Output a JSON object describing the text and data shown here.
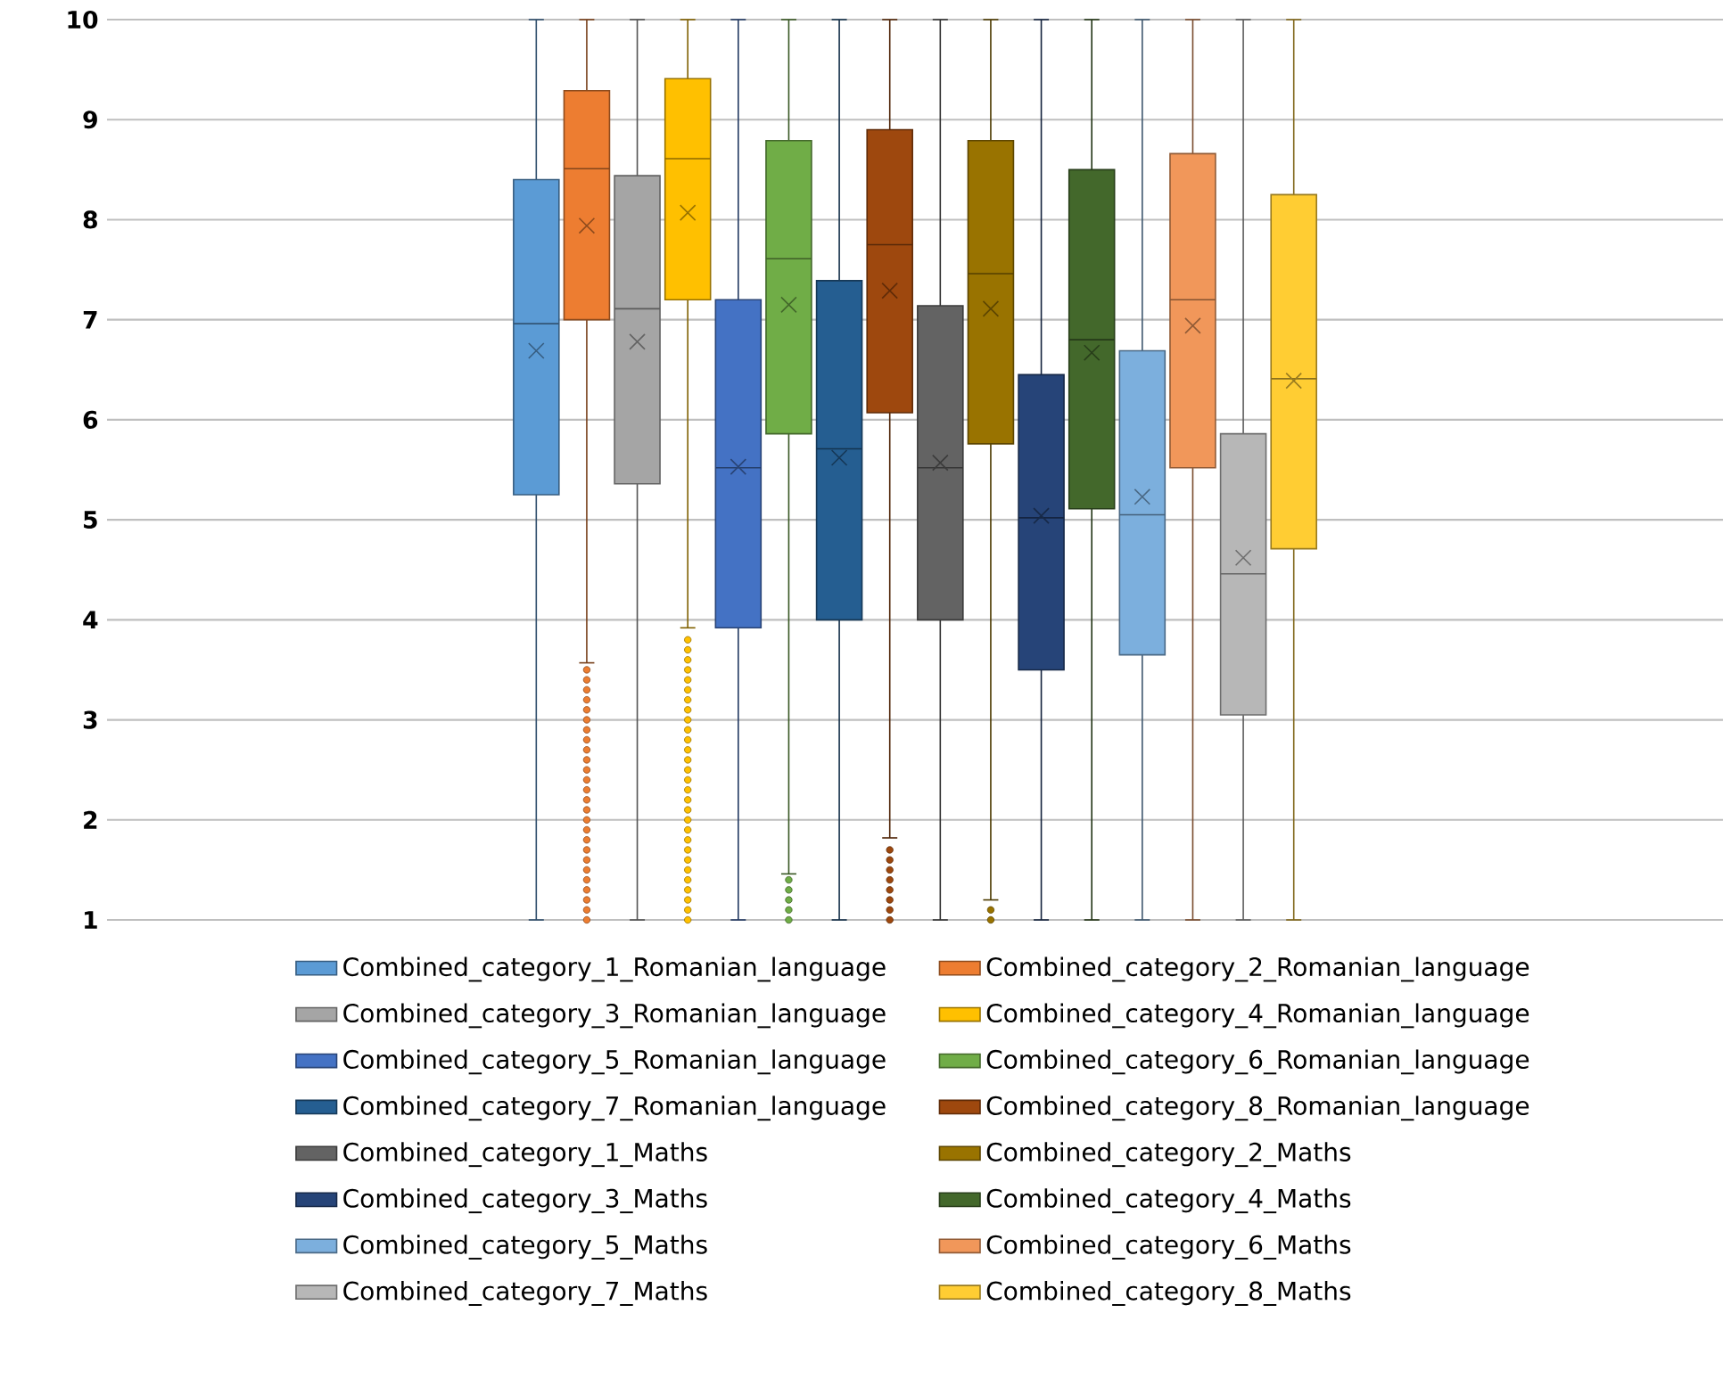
{
  "chart_data": {
    "type": "box",
    "categories": [
      null
    ],
    "ylim": [
      1,
      10
    ],
    "yticks": [
      1,
      2,
      3,
      4,
      5,
      6,
      7,
      8,
      9,
      10
    ],
    "grid": "y",
    "legend": "bottom",
    "series": [
      {
        "name": "Combined_category_1_Romanian_language",
        "color": "#5b9bd5",
        "boxes": [
          {
            "low": 1,
            "q1": 5.25,
            "median": 6.96,
            "q3": 8.4,
            "high": 10,
            "mean": 6.69
          }
        ]
      },
      {
        "name": "Combined_category_2_Romanian_language",
        "color": "#ed7d31",
        "boxes": [
          {
            "low": 3.57,
            "q1": 7.0,
            "median": 8.51,
            "q3": 9.29,
            "high": 10,
            "mean": 7.94,
            "outliers": [
              1.0,
              1.1,
              1.2,
              1.3,
              1.4,
              1.5,
              1.6,
              1.7,
              1.8,
              1.9,
              2.0,
              2.1,
              2.2,
              2.3,
              2.4,
              2.5,
              2.6,
              2.7,
              2.8,
              2.9,
              3.0,
              3.1,
              3.2,
              3.3,
              3.4,
              3.5
            ]
          }
        ]
      },
      {
        "name": "Combined_category_3_Romanian_language",
        "color": "#a5a5a5",
        "boxes": [
          {
            "low": 1,
            "q1": 5.36,
            "median": 7.11,
            "q3": 8.44,
            "high": 10,
            "mean": 6.78
          }
        ]
      },
      {
        "name": "Combined_category_4_Romanian_language",
        "color": "#ffc000",
        "boxes": [
          {
            "low": 3.92,
            "q1": 7.2,
            "median": 8.61,
            "q3": 9.41,
            "high": 10,
            "mean": 8.07,
            "outliers": [
              1.0,
              1.1,
              1.2,
              1.3,
              1.4,
              1.5,
              1.6,
              1.7,
              1.8,
              1.9,
              2.0,
              2.1,
              2.2,
              2.3,
              2.4,
              2.5,
              2.6,
              2.7,
              2.8,
              2.9,
              3.0,
              3.1,
              3.2,
              3.3,
              3.4,
              3.5,
              3.6,
              3.7,
              3.8
            ]
          }
        ]
      },
      {
        "name": "Combined_category_5_Romanian_language",
        "color": "#4472c4",
        "boxes": [
          {
            "low": 1,
            "q1": 3.92,
            "median": 5.52,
            "q3": 7.2,
            "high": 10,
            "mean": 5.53
          }
        ]
      },
      {
        "name": "Combined_category_6_Romanian_language",
        "color": "#70ad47",
        "boxes": [
          {
            "low": 1.46,
            "q1": 5.86,
            "median": 7.61,
            "q3": 8.79,
            "high": 10,
            "mean": 7.15,
            "outliers": [
              1.0,
              1.1,
              1.2,
              1.3,
              1.4
            ]
          }
        ]
      },
      {
        "name": "Combined_category_7_Romanian_language",
        "color": "#255e91",
        "boxes": [
          {
            "low": 1,
            "q1": 4.0,
            "median": 5.71,
            "q3": 7.39,
            "high": 10,
            "mean": 5.62
          }
        ]
      },
      {
        "name": "Combined_category_8_Romanian_language",
        "color": "#9e480e",
        "boxes": [
          {
            "low": 1.82,
            "q1": 6.07,
            "median": 7.75,
            "q3": 8.9,
            "high": 10,
            "mean": 7.29,
            "outliers": [
              1.0,
              1.1,
              1.2,
              1.3,
              1.4,
              1.5,
              1.6,
              1.7
            ]
          }
        ]
      },
      {
        "name": "Combined_category_1_Maths",
        "color": "#636363",
        "boxes": [
          {
            "low": 1,
            "q1": 4.0,
            "median": 5.52,
            "q3": 7.14,
            "high": 10,
            "mean": 5.57
          }
        ]
      },
      {
        "name": "Combined_category_2_Maths",
        "color": "#997300",
        "boxes": [
          {
            "low": 1.2,
            "q1": 5.76,
            "median": 7.46,
            "q3": 8.79,
            "high": 10,
            "mean": 7.11,
            "outliers": [
              1.0,
              1.1
            ]
          }
        ]
      },
      {
        "name": "Combined_category_3_Maths",
        "color": "#264478",
        "boxes": [
          {
            "low": 1,
            "q1": 3.5,
            "median": 5.02,
            "q3": 6.45,
            "high": 10,
            "mean": 5.04
          }
        ]
      },
      {
        "name": "Combined_category_4_Maths",
        "color": "#43682b",
        "boxes": [
          {
            "low": 1,
            "q1": 5.11,
            "median": 6.8,
            "q3": 8.5,
            "high": 10,
            "mean": 6.67
          }
        ]
      },
      {
        "name": "Combined_category_5_Maths",
        "color": "#7cafdd",
        "boxes": [
          {
            "low": 1,
            "q1": 3.65,
            "median": 5.05,
            "q3": 6.69,
            "high": 10,
            "mean": 5.23
          }
        ]
      },
      {
        "name": "Combined_category_6_Maths",
        "color": "#f1975a",
        "boxes": [
          {
            "low": 1,
            "q1": 5.52,
            "median": 7.2,
            "q3": 8.66,
            "high": 10,
            "mean": 6.94
          }
        ]
      },
      {
        "name": "Combined_category_7_Maths",
        "color": "#b7b7b7",
        "boxes": [
          {
            "low": 1,
            "q1": 3.05,
            "median": 4.46,
            "q3": 5.86,
            "high": 10,
            "mean": 4.62
          }
        ]
      },
      {
        "name": "Combined_category_8_Maths",
        "color": "#ffcd33",
        "boxes": [
          {
            "low": 1,
            "q1": 4.71,
            "median": 6.41,
            "q3": 8.25,
            "high": 10,
            "mean": 6.39
          }
        ]
      }
    ]
  }
}
